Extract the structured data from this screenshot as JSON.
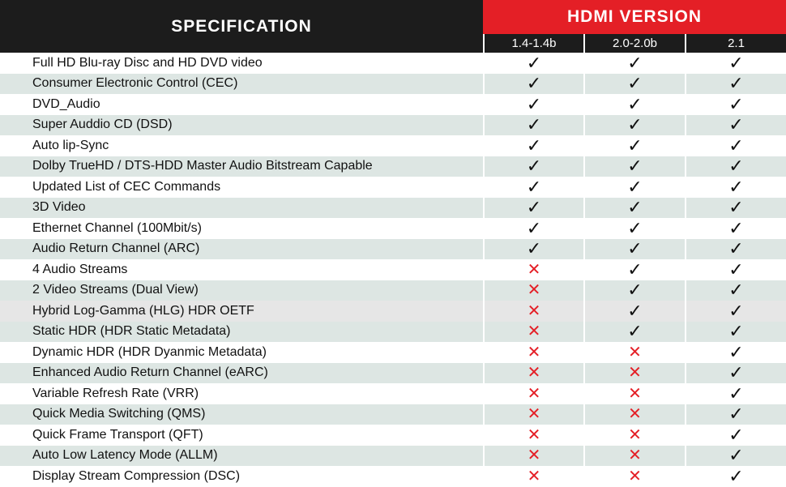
{
  "header": {
    "spec_title": "SPECIFICATION",
    "version_title": "HDMI VERSION",
    "versions": [
      "1.4-1.4b",
      "2.0-2.0b",
      "2.1"
    ]
  },
  "symbols": {
    "yes": "✓",
    "no": "✕"
  },
  "colors": {
    "accent": "#e41f26",
    "header_bg": "#1c1c1c",
    "row_alt": "#dde6e3"
  },
  "rows": [
    {
      "label": "Full HD Blu-ray Disc and HD DVD video",
      "support": [
        true,
        true,
        true
      ]
    },
    {
      "label": "Consumer Electronic Control (CEC)",
      "support": [
        true,
        true,
        true
      ]
    },
    {
      "label": "DVD_Audio",
      "support": [
        true,
        true,
        true
      ]
    },
    {
      "label": "Super Auddio CD (DSD)",
      "support": [
        true,
        true,
        true
      ]
    },
    {
      "label": "Auto lip-Sync",
      "support": [
        true,
        true,
        true
      ]
    },
    {
      "label": "Dolby TrueHD / DTS-HDD Master Audio Bitstream Capable",
      "support": [
        true,
        true,
        true
      ]
    },
    {
      "label": "Updated List of CEC Commands",
      "support": [
        true,
        true,
        true
      ]
    },
    {
      "label": "3D Video",
      "support": [
        true,
        true,
        true
      ]
    },
    {
      "label": "Ethernet Channel (100Mbit/s)",
      "support": [
        true,
        true,
        true
      ]
    },
    {
      "label": "Audio Return Channel (ARC)",
      "support": [
        true,
        true,
        true
      ]
    },
    {
      "label": "4 Audio Streams",
      "support": [
        false,
        true,
        true
      ]
    },
    {
      "label": "2 Video Streams (Dual View)",
      "support": [
        false,
        true,
        true
      ]
    },
    {
      "label": "Hybrid Log-Gamma (HLG) HDR OETF",
      "support": [
        false,
        true,
        true
      ]
    },
    {
      "label": "Static HDR (HDR Static Metadata)",
      "support": [
        false,
        true,
        true
      ]
    },
    {
      "label": "Dynamic HDR (HDR Dyanmic Metadata)",
      "support": [
        false,
        false,
        true
      ]
    },
    {
      "label": "Enhanced Audio Return Channel (eARC)",
      "support": [
        false,
        false,
        true
      ]
    },
    {
      "label": "Variable Refresh Rate (VRR)",
      "support": [
        false,
        false,
        true
      ]
    },
    {
      "label": "Quick Media Switching (QMS)",
      "support": [
        false,
        false,
        true
      ]
    },
    {
      "label": "Quick Frame Transport (QFT)",
      "support": [
        false,
        false,
        true
      ]
    },
    {
      "label": "Auto Low Latency Mode (ALLM)",
      "support": [
        false,
        false,
        true
      ]
    },
    {
      "label": "Display Stream Compression (DSC)",
      "support": [
        false,
        false,
        true
      ]
    }
  ]
}
